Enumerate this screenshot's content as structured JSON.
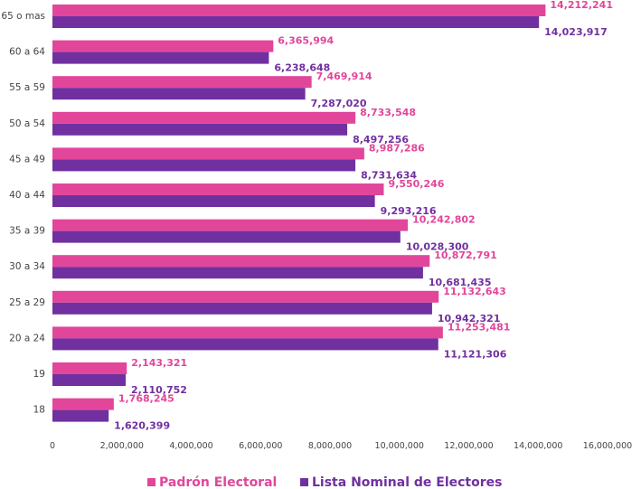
{
  "chart_data": {
    "type": "bar",
    "orientation": "horizontal",
    "categories": [
      "65 o mas",
      "60 a 64",
      "55 a 59",
      "50 a 54",
      "45 a 49",
      "40 a 44",
      "35 a 39",
      "30 a 34",
      "25 a 29",
      "20 a 24",
      "19",
      "18"
    ],
    "series": [
      {
        "name": "Padrón Electoral",
        "color": "#e1469b",
        "values": [
          14212241,
          6365994,
          7469914,
          8733548,
          8987286,
          9550246,
          10242802,
          10872791,
          11132643,
          11253481,
          2143321,
          1768245
        ],
        "labels": [
          "14,212,241",
          "6,365,994",
          "7,469,914",
          "8,733,548",
          "8,987,286",
          "9,550,246",
          "10,242,802",
          "10,872,791",
          "11,132,643",
          "11,253,481",
          "2,143,321",
          "1,768,245"
        ]
      },
      {
        "name": "Lista Nominal de Electores",
        "color": "#7030a0",
        "values": [
          14023917,
          6238648,
          7287020,
          8497256,
          8731634,
          9293216,
          10028300,
          10681435,
          10942321,
          11121306,
          2110752,
          1620399
        ],
        "labels": [
          "14,023,917",
          "6,238,648",
          "7,287,020",
          "8,497,256",
          "8,731,634",
          "9,293,216",
          "10,028,300",
          "10,681,435",
          "10,942,321",
          "11,121,306",
          "2,110,752",
          "1,620,399"
        ]
      }
    ],
    "xlim": [
      0,
      16000000
    ],
    "xticks": [
      0,
      2000000,
      4000000,
      6000000,
      8000000,
      10000000,
      12000000,
      14000000,
      16000000
    ],
    "xtick_labels": [
      "0",
      "2,000,000",
      "4,000,000",
      "6,000,000",
      "8,000,000",
      "10,000,000",
      "12,000,000",
      "14,000,000",
      "16,000,000"
    ],
    "grid": false,
    "legend_position": "bottom"
  }
}
